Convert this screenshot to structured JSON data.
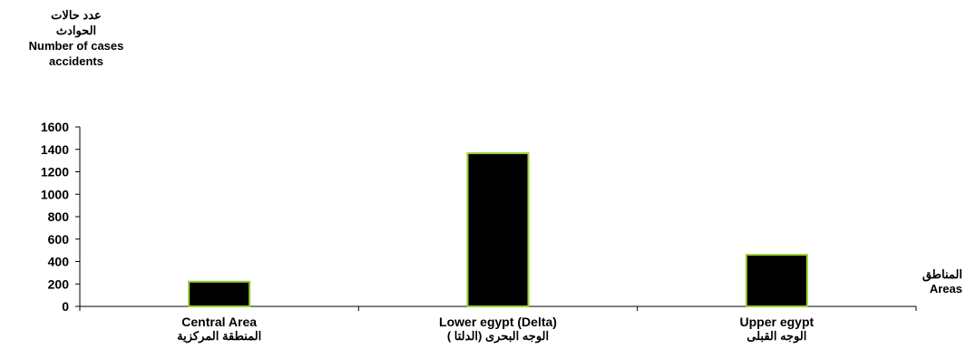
{
  "chart_data": {
    "type": "bar",
    "categories": [
      {
        "en": "Central Area",
        "ar": "المنطقة المركزية"
      },
      {
        "en": "Lower egypt  (Delta)",
        "ar": "الوجه البحرى  (الدلتا )"
      },
      {
        "en": "Upper egypt",
        "ar": "الوجه القبلى"
      }
    ],
    "values": [
      220,
      1365,
      460
    ],
    "ylim": [
      0,
      1600
    ],
    "yticks": [
      "0",
      "200",
      "400",
      "600",
      "800",
      "1000",
      "1200",
      "1400",
      "1600"
    ],
    "ylabel": {
      "ar_line1": "عدد حالات",
      "ar_line2": "الحوادث",
      "en_line1": "Number of cases",
      "en_line2": "accidents"
    },
    "xlabel": {
      "ar": "المناطق",
      "en": "Areas"
    },
    "grid": false,
    "colors": {
      "bar_fill": "#000000",
      "bar_stroke": "#9acd32",
      "axis": "#000000"
    }
  }
}
